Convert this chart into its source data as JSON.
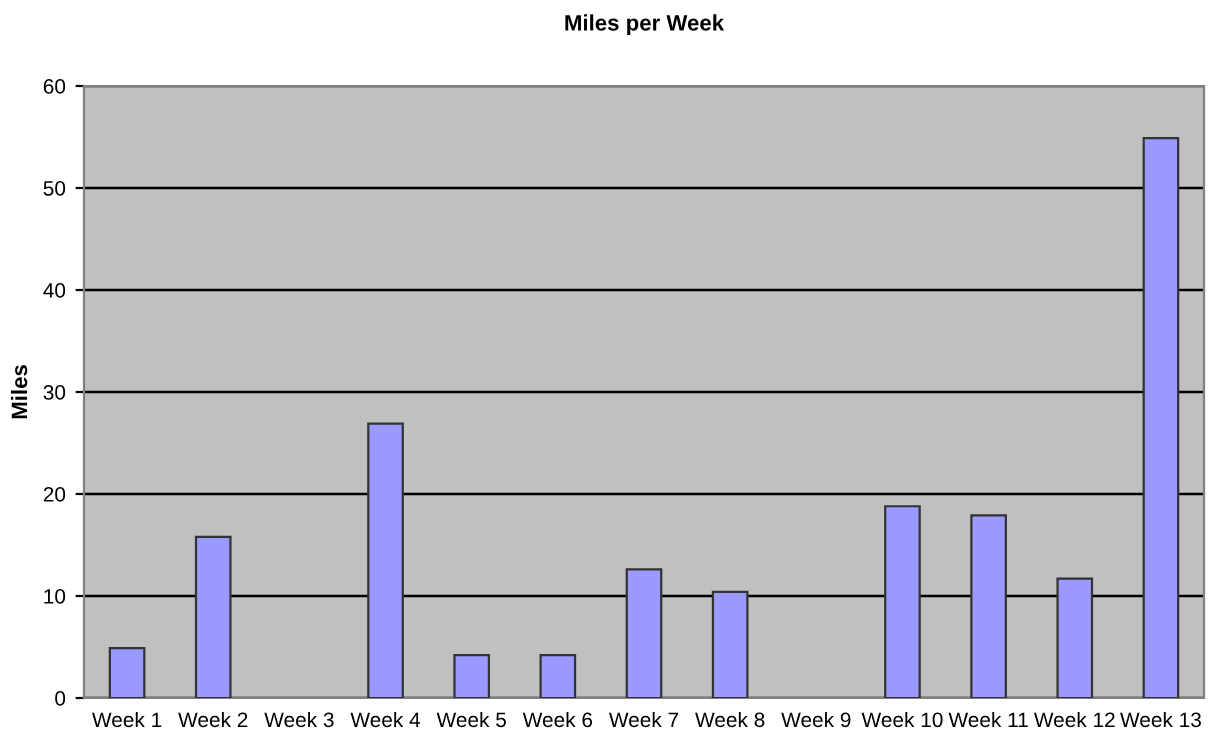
{
  "chart_data": {
    "type": "bar",
    "title": "Miles per Week",
    "ylabel": "Miles",
    "categories": [
      "Week 1",
      "Week 2",
      "Week 3",
      "Week 4",
      "Week 5",
      "Week 6",
      "Week 7",
      "Week 8",
      "Week 9",
      "Week 10",
      "Week 11",
      "Week 12",
      "Week 13"
    ],
    "values": [
      4.9,
      15.8,
      null,
      26.9,
      4.2,
      4.2,
      12.6,
      10.4,
      null,
      18.8,
      17.9,
      11.7,
      54.9
    ],
    "color": "#9999ff",
    "ylim": [
      0,
      60
    ],
    "yticks": [
      0,
      10,
      20,
      30,
      40,
      50,
      60
    ],
    "grid": "y"
  }
}
